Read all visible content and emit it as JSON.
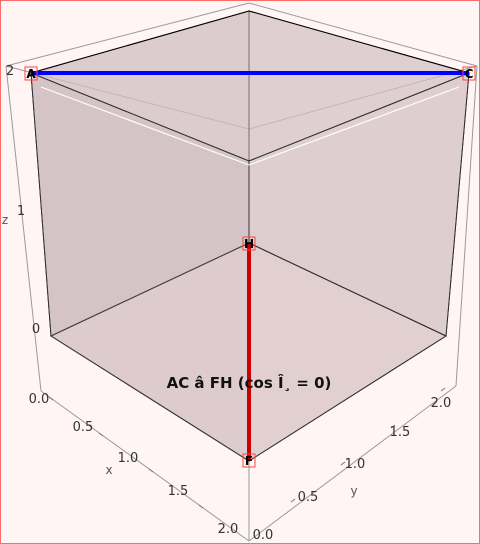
{
  "caption": "AC â FH (cos Î¸ = 0)",
  "axes": {
    "x_name": "x",
    "y_name": "y",
    "z_name": "z",
    "x_ticks": [
      "0.0",
      "0.5",
      "1.0",
      "1.5",
      "2.0"
    ],
    "y_ticks": [
      "0.0",
      "0.5",
      "1.0",
      "1.5",
      "2.0"
    ],
    "z_ticks": [
      "0",
      "1",
      "2"
    ]
  },
  "points": {
    "A": "A",
    "C": "C",
    "H": "H",
    "F": "F"
  },
  "segments": [
    {
      "name": "AC",
      "color": "#0000ff"
    },
    {
      "name": "FH",
      "color": "#cc0000"
    }
  ],
  "colors": {
    "background": "#fff5f5",
    "frame": "#ff6b6b",
    "cube_fill": "#c9b3b3",
    "marker": "#ff4444"
  }
}
